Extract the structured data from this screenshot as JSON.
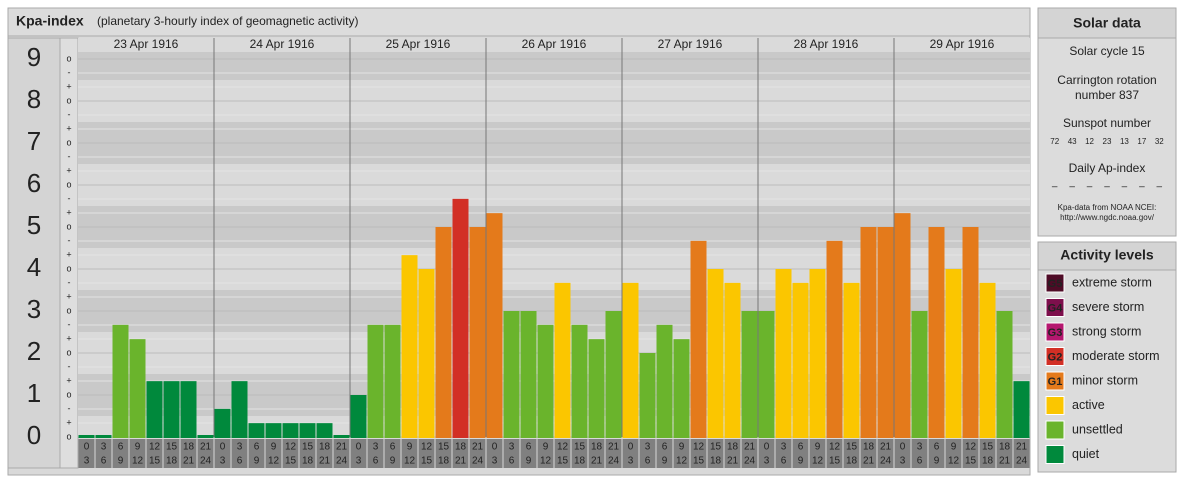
{
  "header": {
    "title": "Kpa-index",
    "subtitle": "(planetary 3-hourly index of geomagnetic activity)"
  },
  "chart_data": {
    "type": "bar",
    "days": [
      "23 Apr 1916",
      "24 Apr 1916",
      "25 Apr 1916",
      "26 Apr 1916",
      "27 Apr 1916",
      "28 Apr 1916",
      "29 Apr 1916"
    ],
    "hours": [
      0,
      3,
      6,
      9,
      12,
      15,
      18,
      21,
      24
    ],
    "values": [
      0,
      0,
      2.67,
      2.33,
      1.33,
      1.33,
      1.33,
      0,
      0.67,
      1.33,
      0.33,
      0.33,
      0.33,
      0.33,
      0.33,
      0,
      1,
      2.67,
      2.67,
      4.33,
      4,
      5,
      5.67,
      5,
      5.33,
      3,
      3,
      2.67,
      3.67,
      2.67,
      2.33,
      3,
      3.67,
      2,
      2.67,
      2.33,
      4.67,
      4,
      3.67,
      3,
      3,
      4,
      3.67,
      4,
      4.67,
      3.67,
      5,
      5,
      5.33,
      3,
      5,
      4,
      5,
      3.67,
      3,
      1.33
    ],
    "colors": [
      "#00893c",
      "#00893c",
      "#6ab42c",
      "#6ab42c",
      "#00893c",
      "#00893c",
      "#00893c",
      "#00893c",
      "#00893c",
      "#00893c",
      "#00893c",
      "#00893c",
      "#00893c",
      "#00893c",
      "#00893c",
      "#00893c",
      "#00893c",
      "#6ab42c",
      "#6ab42c",
      "#fbc600",
      "#fbc600",
      "#e47a1b",
      "#d22f25",
      "#e47a1b",
      "#e47a1b",
      "#6ab42c",
      "#6ab42c",
      "#6ab42c",
      "#fbc600",
      "#6ab42c",
      "#6ab42c",
      "#6ab42c",
      "#fbc600",
      "#6ab42c",
      "#6ab42c",
      "#6ab42c",
      "#e47a1b",
      "#fbc600",
      "#fbc600",
      "#6ab42c",
      "#6ab42c",
      "#fbc600",
      "#fbc600",
      "#fbc600",
      "#e47a1b",
      "#fbc600",
      "#e47a1b",
      "#e47a1b",
      "#e47a1b",
      "#6ab42c",
      "#e47a1b",
      "#fbc600",
      "#e47a1b",
      "#fbc600",
      "#6ab42c",
      "#00893c"
    ],
    "ylim": [
      0,
      9.5
    ],
    "yticks": [
      0,
      1,
      2,
      3,
      4,
      5,
      6,
      7,
      8,
      9
    ],
    "subticks": [
      "-",
      "o",
      "+"
    ]
  },
  "solar": {
    "title": "Solar data",
    "cycle": "Solar cycle 15",
    "carrington": [
      "Carrington rotation",
      "number 837"
    ],
    "sunspot_title": "Sunspot number",
    "sunspots": [
      72,
      43,
      12,
      23,
      13,
      17,
      32
    ],
    "ap_title": "Daily Ap-index",
    "ap": [
      "–",
      "–",
      "–",
      "–",
      "–",
      "–",
      "–"
    ],
    "source": [
      "Kpa-data from NOAA NCEI:",
      "http://www.ngdc.noaa.gov/"
    ]
  },
  "levels": {
    "title": "Activity levels",
    "items": [
      {
        "badge": "G5",
        "name": "extreme storm",
        "color": "#4e0b26"
      },
      {
        "badge": "G4",
        "name": "severe storm",
        "color": "#7d0f4c"
      },
      {
        "badge": "G3",
        "name": "strong storm",
        "color": "#b5176f"
      },
      {
        "badge": "G2",
        "name": "moderate storm",
        "color": "#d22f25"
      },
      {
        "badge": "G1",
        "name": "minor storm",
        "color": "#e47a1b"
      },
      {
        "badge": null,
        "name": "active",
        "color": "#fbc600"
      },
      {
        "badge": null,
        "name": "unsettled",
        "color": "#6ab42c"
      },
      {
        "badge": null,
        "name": "quiet",
        "color": "#00893c"
      }
    ]
  }
}
